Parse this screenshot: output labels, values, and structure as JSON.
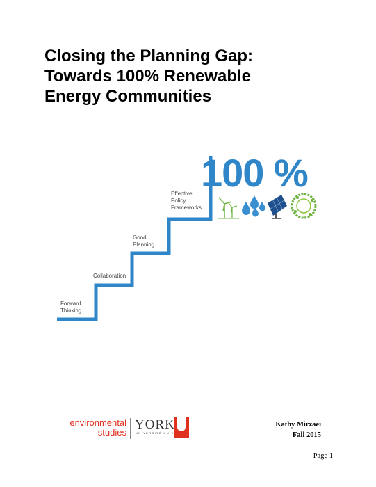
{
  "title": {
    "lines": [
      "Closing the Planning Gap:",
      "Towards 100% Renewable",
      "Energy Communities"
    ]
  },
  "figure": {
    "headline": "100 %",
    "steps": [
      {
        "lines": [
          "Forward",
          "Thinking"
        ]
      },
      {
        "lines": [
          "Collaboration"
        ]
      },
      {
        "lines": [
          "Good",
          "Planning"
        ]
      },
      {
        "lines": [
          "Effective",
          "Policy",
          "Frameworks"
        ]
      }
    ],
    "icons": [
      "wind-turbine-icon",
      "water-drops-icon",
      "solar-panel-icon",
      "green-earth-icon"
    ],
    "colors": {
      "stairs": "#2f86c8",
      "headline": "#2f86c8",
      "green": "#6cb33f"
    }
  },
  "author": {
    "name": "Kathy Mirzaei",
    "term": "Fall 2015"
  },
  "logos": {
    "department": [
      "environmental",
      "studies"
    ],
    "university": "YORK",
    "university_sub": "UNIVERSITÉ UNIVERSITY"
  },
  "page": {
    "label": "Page 1"
  }
}
